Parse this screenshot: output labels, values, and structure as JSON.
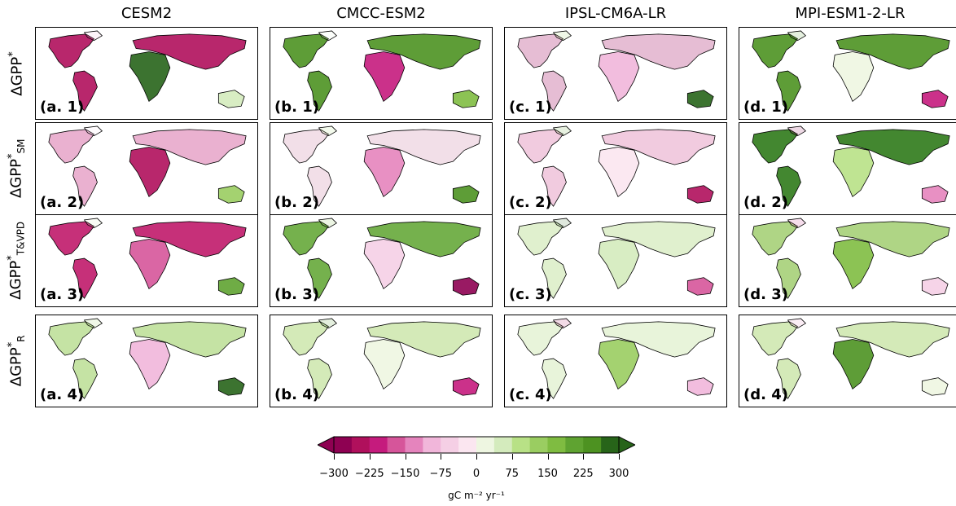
{
  "columns": [
    {
      "title": "CESM2",
      "code": "a",
      "left": 43
    },
    {
      "title": "CMCC-ESM2",
      "code": "b",
      "left": 331
    },
    {
      "title": "IPSL-CM6A-LR",
      "code": "c",
      "left": 619
    },
    {
      "title": "MPI-ESM1-2-LR",
      "code": "d",
      "left": 907
    }
  ],
  "rows": [
    {
      "label": "ΔGPP",
      "sup": "*",
      "sub": "",
      "num": 1,
      "top": 33
    },
    {
      "label": "ΔGPP",
      "sup": "*",
      "sub": "SM",
      "num": 2,
      "top": 150
    },
    {
      "label": "ΔGPP",
      "sup": "*",
      "sub": "T&VPD",
      "num": 3,
      "top": 351
    },
    {
      "label": "ΔGPP",
      "sup": "*",
      "sub": "R",
      "num": 4,
      "top": 386
    }
  ],
  "panel_labels": {
    "a": [
      "(a. 1)",
      "(a. 2)",
      "(a. 3)",
      "(a. 4)"
    ],
    "b": [
      "(b. 1)",
      "(b. 2)",
      "(b. 3)",
      "(b. 4)"
    ],
    "c": [
      "(c. 1)",
      "(c. 2)",
      "(c. 3)",
      "(c. 4)"
    ],
    "d": [
      "(d. 1)",
      "(d. 2)",
      "(d. 3)",
      "(d. 4)"
    ]
  },
  "panel_tones": {
    "a": [
      "#b0105c",
      "#e8a9cb",
      "#c0196a",
      "#bfe09a"
    ],
    "b": [
      "#4d9221",
      "#f1dbe6",
      "#66a83a",
      "#cfe8b0"
    ],
    "c": [
      "#e3b6cf",
      "#f0c5dc",
      "#ddeec9",
      "#e5f3d6"
    ],
    "d": [
      "#4d9221",
      "#2f7a1a",
      "#a6d078",
      "#cfe8b0"
    ]
  },
  "colorbar": {
    "colors": [
      "#8e0152",
      "#b0105c",
      "#c51b7d",
      "#d6559a",
      "#e584bd",
      "#f1b6da",
      "#f5cfe5",
      "#fbe6f0",
      "#eef6e1",
      "#d4ebbd",
      "#b8e186",
      "#9acd61",
      "#7fbc41",
      "#5fa331",
      "#4d9221",
      "#276419"
    ],
    "ticks": [
      "−300",
      "−225",
      "−150",
      "−75",
      "0",
      "75",
      "150",
      "225",
      "300"
    ],
    "unit": "gC m⁻² yr⁻¹"
  }
}
